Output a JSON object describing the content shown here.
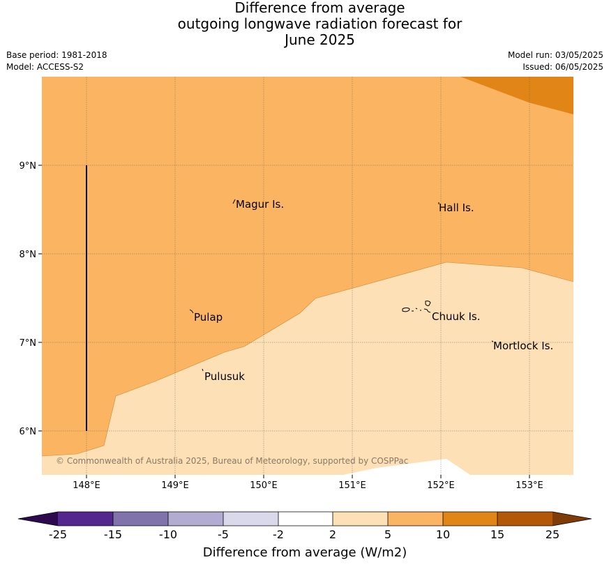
{
  "title": {
    "line1": "Difference from average",
    "line2": "outgoing longwave radiation forecast for",
    "line3": "June 2025"
  },
  "meta_left": {
    "base_period": "Base period: 1981-2018",
    "model": "Model: ACCESS-S2"
  },
  "meta_right": {
    "model_run": "Model run: 03/05/2025",
    "issued": "Issued: 06/05/2025"
  },
  "map": {
    "lon_ticks": [
      "148°E",
      "149°E",
      "150°E",
      "151°E",
      "152°E",
      "153°E"
    ],
    "lat_ticks": [
      "9°N",
      "8°N",
      "7°N",
      "6°N"
    ],
    "places": [
      {
        "name": "Magur Is."
      },
      {
        "name": "Hall Is."
      },
      {
        "name": "Pulap"
      },
      {
        "name": "Chuuk Is."
      },
      {
        "name": "Mortlock Is."
      },
      {
        "name": "Pulusuk"
      }
    ],
    "copyright": "© Commonwealth of Australia 2025, Bureau of Meteorology, supported by COSPPac",
    "fill_colors": {
      "band_5_10": "#fbb562",
      "band_2_5": "#fde0b5",
      "band_10_15": "#e08516",
      "band_neg2_2": "#ffffff"
    }
  },
  "colorbar": {
    "tick_labels": [
      "-25",
      "-15",
      "-10",
      "-5",
      "-2",
      "2",
      "5",
      "10",
      "15",
      "25"
    ],
    "colors": [
      "#2d0a4e",
      "#54278f",
      "#8073ac",
      "#b2abd2",
      "#d8daeb",
      "#ffffff",
      "#fde0b5",
      "#fbb562",
      "#e08516",
      "#b35806",
      "#7f3b08"
    ],
    "label": "Difference from average (W/m2)"
  }
}
